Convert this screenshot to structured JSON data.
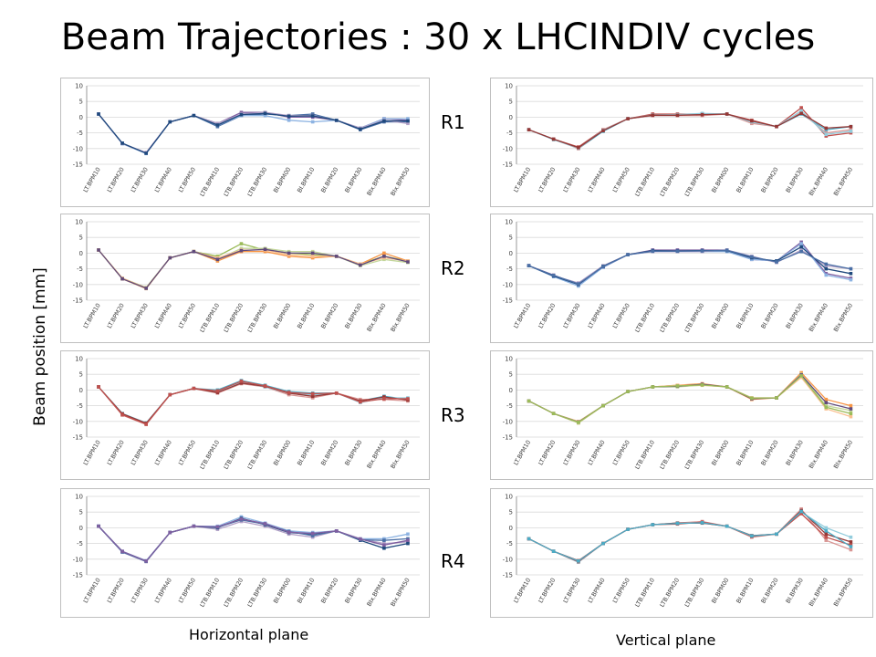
{
  "title": "Beam Trajectories : 30 x LHCINDIV cycles",
  "ylabel": "Beam position   [mm]",
  "plane_labels": {
    "horizontal": "Horizontal plane",
    "vertical": "Vertical plane"
  },
  "ring_labels": [
    "R1",
    "R2",
    "R3",
    "R4"
  ],
  "colors": [
    "#4a6fa5",
    "#c0504d",
    "#9bbb59",
    "#7f5fa0",
    "#4bacc6",
    "#f79646",
    "#8db3e2",
    "#d99694",
    "#c3d69b",
    "#b2a1c7",
    "#93cddd",
    "#fac090",
    "#1f497d",
    "#953735",
    "#604a7b"
  ],
  "chart_data": [
    {
      "type": "line",
      "plane": "horizontal",
      "ring": "R1",
      "ylim": [
        -15,
        10
      ],
      "yticks": [
        10,
        5,
        0,
        -5,
        -10,
        -15
      ],
      "categories": [
        "LT.BPM10",
        "LT.BPM20",
        "LT.BPM30",
        "LT.BPM40",
        "LT.BPM50",
        "LTB.BPM10",
        "LTB.BPM20",
        "LTB.BPM30",
        "BI.BPM00",
        "BI.BPM10",
        "BI.BPM20",
        "BI.BPM30",
        "BIx.BPM40",
        "BIx.BPM50"
      ],
      "series": [
        {
          "values": [
            1,
            -8.3,
            -11.5,
            -1.5,
            0.5,
            -3,
            0.5,
            1,
            0.5,
            1,
            -1,
            -4,
            -1.5,
            -1.5
          ]
        },
        {
          "values": [
            1,
            -8.4,
            -11.3,
            -1.5,
            0.5,
            -2,
            1.5,
            1.5,
            0,
            0,
            -1,
            -3.5,
            -0.5,
            -1
          ]
        },
        {
          "values": [
            1,
            -8.5,
            -11.6,
            -1.5,
            0.5,
            -2.5,
            0.5,
            0.5,
            -1,
            -1.5,
            -1,
            -3.5,
            -0.5,
            -0.5
          ]
        },
        {
          "values": [
            1,
            -8.4,
            -11.4,
            -1.5,
            0.5,
            -2,
            1,
            1.5,
            0.5,
            0.5,
            -1,
            -3.5,
            -1,
            -2
          ]
        },
        {
          "values": [
            1,
            -8.3,
            -11.5,
            -1.5,
            0.5,
            -2.5,
            0.8,
            1.2,
            0.3,
            0.4,
            -1,
            -3.8,
            -1.2,
            -1.2
          ]
        }
      ]
    },
    {
      "type": "line",
      "plane": "vertical",
      "ring": "R1",
      "ylim": [
        -15,
        10
      ],
      "yticks": [
        10,
        5,
        0,
        -5,
        -10,
        -15
      ],
      "categories": [
        "LT.BPM10",
        "LT.BPM20",
        "LT.BPM30",
        "LT.BPM40",
        "LT.BPM50",
        "LTB.BPM10",
        "LTB.BPM20",
        "LTB.BPM30",
        "BI.BPM00",
        "BI.BPM10",
        "BI.BPM20",
        "BI.BPM30",
        "BIx.BPM40",
        "BIx.BPM50"
      ],
      "series": [
        {
          "values": [
            -4,
            -7,
            -9.5,
            -4,
            -0.5,
            1,
            1,
            1,
            1,
            -1,
            -3,
            3,
            -6,
            -5
          ]
        },
        {
          "values": [
            -4,
            -7,
            -10,
            -4.5,
            -0.5,
            0.5,
            0.5,
            1,
            1,
            -1.5,
            -3,
            1,
            -4,
            -3
          ]
        },
        {
          "values": [
            -4,
            -7,
            -10,
            -4,
            -0.5,
            0.5,
            0.5,
            0.5,
            1,
            -2,
            -3,
            1.5,
            -5,
            -4
          ]
        },
        {
          "values": [
            -4,
            -7.2,
            -9.8,
            -4.2,
            -0.5,
            0.7,
            0.8,
            1.2,
            1,
            -1.5,
            -3,
            2,
            -5.5,
            -4.5
          ]
        },
        {
          "values": [
            -4,
            -7,
            -9.7,
            -4.3,
            -0.5,
            0.6,
            0.6,
            0.8,
            1,
            -1.2,
            -3,
            1.2,
            -3.5,
            -3
          ]
        }
      ]
    },
    {
      "type": "line",
      "plane": "horizontal",
      "ring": "R2",
      "ylim": [
        -15,
        10
      ],
      "yticks": [
        10,
        5,
        0,
        -5,
        -10,
        -15
      ],
      "categories": [
        "LT.BPM10",
        "LT.BPM20",
        "LT.BPM30",
        "LT.BPM40",
        "LT.BPM50",
        "LTB.BPM10",
        "LTB.BPM20",
        "LTB.BPM30",
        "BI.BPM00",
        "BI.BPM10",
        "BI.BPM20",
        "BI.BPM30",
        "BIx.BPM40",
        "BIx.BPM50"
      ],
      "series": [
        {
          "values": [
            1,
            -8,
            -11,
            -1.5,
            0.5,
            -1,
            3,
            1,
            0,
            -0.5,
            -1,
            -3.5,
            -1,
            -2.5
          ]
        },
        {
          "values": [
            1,
            -8.2,
            -11.3,
            -1.5,
            0.5,
            -2.5,
            0.5,
            0.5,
            -1,
            -1.5,
            -1,
            -3.5,
            0,
            -2.5
          ]
        },
        {
          "values": [
            1,
            -8.1,
            -11.2,
            -1.5,
            0.5,
            -2,
            1.5,
            1.5,
            0.5,
            0.5,
            -1,
            -4,
            -2,
            -3
          ]
        },
        {
          "values": [
            1,
            -8,
            -11.1,
            -1.5,
            0.5,
            -1.5,
            1,
            1,
            -0.5,
            -1,
            -1,
            -3.5,
            -1.5,
            -2.5
          ]
        },
        {
          "values": [
            1,
            -8.2,
            -11.2,
            -1.5,
            0.5,
            -2,
            0.8,
            1.2,
            0,
            0,
            -1,
            -3.8,
            -1,
            -2.8
          ]
        }
      ]
    },
    {
      "type": "line",
      "plane": "vertical",
      "ring": "R2",
      "ylim": [
        -15,
        10
      ],
      "yticks": [
        10,
        5,
        0,
        -5,
        -10,
        -15
      ],
      "categories": [
        "LT.BPM10",
        "LT.BPM20",
        "LT.BPM30",
        "LT.BPM40",
        "LT.BPM50",
        "LTB.BPM10",
        "LTB.BPM20",
        "LTB.BPM30",
        "BI.BPM00",
        "BI.BPM10",
        "BI.BPM20",
        "BI.BPM30",
        "BIx.BPM40",
        "BIx.BPM50"
      ],
      "series": [
        {
          "values": [
            -4,
            -7,
            -10,
            -4.5,
            -0.5,
            1,
            1,
            1,
            1,
            -2,
            -2.5,
            3.5,
            -6.5,
            -8
          ]
        },
        {
          "values": [
            -4,
            -7.5,
            -10.5,
            -4.5,
            -0.5,
            0.5,
            0.5,
            0.5,
            0.5,
            -2,
            -2.5,
            3,
            -7,
            -8.5
          ]
        },
        {
          "values": [
            -4,
            -7.2,
            -9.5,
            -4,
            -0.5,
            0.5,
            0.5,
            0.5,
            1,
            -1,
            -3,
            1,
            -4,
            -5
          ]
        },
        {
          "values": [
            -4,
            -7.3,
            -10,
            -4.2,
            -0.5,
            0.8,
            0.7,
            0.8,
            0.8,
            -1.5,
            -2.5,
            2,
            -5,
            -6.5
          ]
        },
        {
          "values": [
            -4,
            -7.1,
            -9.8,
            -4.3,
            -0.5,
            0.6,
            0.6,
            0.7,
            0.9,
            -1.2,
            -2.8,
            0.5,
            -3.5,
            -5
          ]
        }
      ]
    },
    {
      "type": "line",
      "plane": "horizontal",
      "ring": "R3",
      "ylim": [
        -15,
        10
      ],
      "yticks": [
        10,
        5,
        0,
        -5,
        -10,
        -15
      ],
      "categories": [
        "LT.BPM10",
        "LT.BPM20",
        "LT.BPM30",
        "LT.BPM40",
        "LT.BPM50",
        "LTB.BPM10",
        "LTB.BPM20",
        "LTB.BPM30",
        "BI.BPM00",
        "BI.BPM10",
        "BI.BPM20",
        "BI.BPM30",
        "BIx.BPM40",
        "BIx.BPM50"
      ],
      "series": [
        {
          "values": [
            1,
            -7.5,
            -10.5,
            -1.5,
            0.5,
            0,
            3,
            1.5,
            -0.5,
            -1,
            -1,
            -3.5,
            -2,
            -3
          ]
        },
        {
          "values": [
            1,
            -8,
            -11,
            -1.5,
            0.5,
            -1,
            2,
            1,
            -1.5,
            -2.5,
            -1,
            -3,
            -3,
            -3.5
          ]
        },
        {
          "values": [
            1,
            -7.8,
            -10.8,
            -1.5,
            0.5,
            -0.5,
            2.5,
            1,
            -1,
            -1.5,
            -1,
            -4,
            -2.5,
            -2.5
          ]
        },
        {
          "values": [
            1,
            -7.6,
            -10.6,
            -1.5,
            0.5,
            -0.8,
            2.2,
            1.2,
            -1,
            -2,
            -1,
            -3.5,
            -2.2,
            -3.2
          ]
        },
        {
          "values": [
            1,
            -7.9,
            -10.9,
            -1.5,
            0.5,
            -0.3,
            2.8,
            1.3,
            -0.8,
            -1.2,
            -1,
            -3.8,
            -2.8,
            -2.8
          ]
        }
      ]
    },
    {
      "type": "line",
      "plane": "vertical",
      "ring": "R3",
      "ylim": [
        -15,
        10
      ],
      "yticks": [
        10,
        5,
        0,
        -5,
        -10,
        -15
      ],
      "categories": [
        "LT.BPM10",
        "LT.BPM20",
        "LT.BPM30",
        "LT.BPM40",
        "LT.BPM50",
        "LTB.BPM10",
        "LTB.BPM20",
        "LTB.BPM30",
        "BI.BPM00",
        "BI.BPM10",
        "BI.BPM20",
        "BI.BPM30",
        "BIx.BPM40",
        "BIx.BPM50"
      ],
      "series": [
        {
          "values": [
            -3.5,
            -7.5,
            -10.5,
            -5,
            -0.5,
            1,
            1.5,
            2,
            1,
            -3,
            -2.5,
            5.5,
            -3,
            -5
          ]
        },
        {
          "values": [
            -3.5,
            -7.5,
            -10.5,
            -5,
            -0.5,
            1,
            1,
            1.5,
            1,
            -2.5,
            -2.5,
            5,
            -5,
            -6.5
          ]
        },
        {
          "values": [
            -3.5,
            -7.5,
            -10,
            -5,
            -0.5,
            1,
            1.5,
            1.5,
            1,
            -2.5,
            -2.5,
            4,
            -6,
            -8.5
          ]
        },
        {
          "values": [
            -3.5,
            -7.5,
            -10.2,
            -5,
            -0.5,
            1,
            1.2,
            1.8,
            1,
            -2.8,
            -2.5,
            4.8,
            -4,
            -6
          ]
        },
        {
          "values": [
            -3.5,
            -7.5,
            -10.3,
            -5,
            -0.5,
            1,
            1.3,
            1.6,
            1,
            -2.6,
            -2.5,
            4.5,
            -5.5,
            -7.5
          ]
        }
      ]
    },
    {
      "type": "line",
      "plane": "horizontal",
      "ring": "R4",
      "ylim": [
        -15,
        10
      ],
      "yticks": [
        10,
        5,
        0,
        -5,
        -10,
        -15
      ],
      "categories": [
        "LT.BPM10",
        "LT.BPM20",
        "LT.BPM30",
        "LT.BPM40",
        "LT.BPM50",
        "LTB.BPM10",
        "LTB.BPM20",
        "LTB.BPM30",
        "BI.BPM00",
        "BI.BPM10",
        "BI.BPM20",
        "BI.BPM30",
        "BIx.BPM40",
        "BIx.BPM50"
      ],
      "series": [
        {
          "values": [
            0.5,
            -7.5,
            -10.5,
            -1.5,
            0.5,
            0.5,
            3.5,
            1.5,
            -1,
            -1.5,
            -1,
            -3.5,
            -3.5,
            -2
          ]
        },
        {
          "values": [
            0.5,
            -7.8,
            -10.8,
            -1.5,
            0.5,
            -0.5,
            2,
            0.5,
            -2,
            -3,
            -1,
            -3.5,
            -5,
            -4.5
          ]
        },
        {
          "values": [
            0.5,
            -7.6,
            -10.6,
            -1.5,
            0.5,
            0,
            3,
            1,
            -1.5,
            -2,
            -1,
            -4,
            -6.5,
            -5
          ]
        },
        {
          "values": [
            0.5,
            -7.7,
            -10.7,
            -1.5,
            0.5,
            0.2,
            2.5,
            1.2,
            -1.2,
            -2.5,
            -1,
            -3.8,
            -4,
            -3.5
          ]
        },
        {
          "values": [
            0.5,
            -7.5,
            -10.6,
            -1.5,
            0.5,
            0.3,
            2.8,
            1.3,
            -1.4,
            -1.8,
            -1,
            -3.6,
            -5.5,
            -4
          ]
        }
      ]
    },
    {
      "type": "line",
      "plane": "vertical",
      "ring": "R4",
      "ylim": [
        -15,
        10
      ],
      "yticks": [
        10,
        5,
        0,
        -5,
        -10,
        -15
      ],
      "categories": [
        "LT.BPM10",
        "LT.BPM20",
        "LT.BPM30",
        "LT.BPM40",
        "LT.BPM50",
        "LTB.BPM10",
        "LTB.BPM20",
        "LTB.BPM30",
        "BI.BPM00",
        "BI.BPM10",
        "BI.BPM20",
        "BI.BPM30",
        "BIx.BPM40",
        "BIx.BPM50"
      ],
      "series": [
        {
          "values": [
            -3.5,
            -7.5,
            -10.5,
            -5,
            -0.5,
            1,
            1.5,
            2,
            0.5,
            -3,
            -2,
            6,
            -4,
            -7
          ]
        },
        {
          "values": [
            -3.5,
            -7.5,
            -11,
            -5,
            -0.5,
            1,
            1.5,
            1.5,
            0.5,
            -2.5,
            -2,
            5,
            0,
            -3
          ]
        },
        {
          "values": [
            -3.5,
            -7.5,
            -10.5,
            -5,
            -0.5,
            1,
            1.5,
            1.5,
            0.5,
            -2.5,
            -2,
            5.5,
            -2,
            -4.5
          ]
        },
        {
          "values": [
            -3.5,
            -7.5,
            -10.8,
            -5,
            -0.5,
            1,
            1.2,
            1.8,
            0.5,
            -2.8,
            -2,
            4.5,
            -3,
            -5.5
          ]
        },
        {
          "values": [
            -3.5,
            -7.5,
            -10.6,
            -5,
            -0.5,
            1,
            1.4,
            1.6,
            0.5,
            -2.6,
            -2,
            5.2,
            -1,
            -6
          ]
        }
      ]
    }
  ]
}
